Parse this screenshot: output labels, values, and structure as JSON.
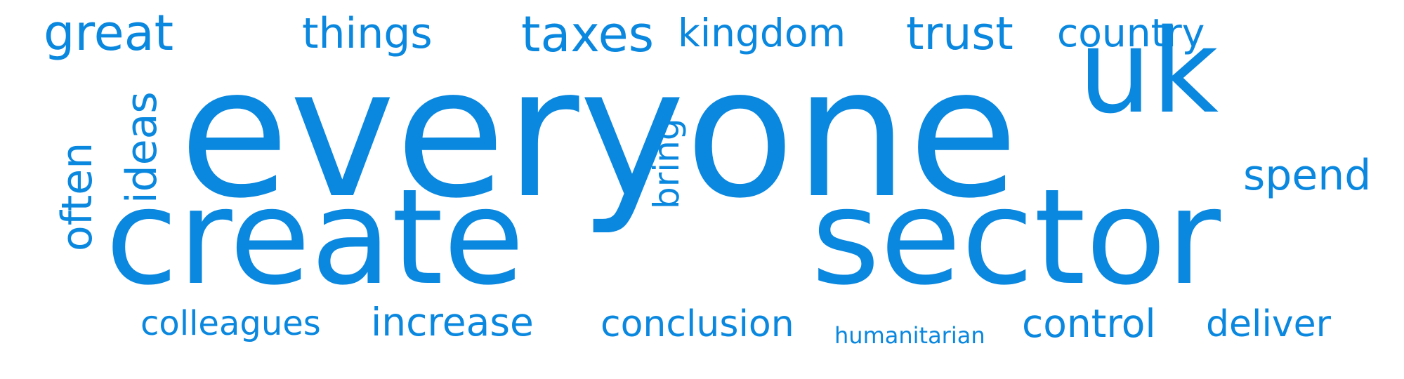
{
  "palette": {
    "word": "#0A87DE"
  },
  "words": [
    {
      "text": "everyone",
      "orientation": "horizontal"
    },
    {
      "text": "create",
      "orientation": "horizontal"
    },
    {
      "text": "sector",
      "orientation": "horizontal"
    },
    {
      "text": "uk",
      "orientation": "horizontal"
    },
    {
      "text": "great",
      "orientation": "horizontal"
    },
    {
      "text": "things",
      "orientation": "horizontal"
    },
    {
      "text": "taxes",
      "orientation": "horizontal"
    },
    {
      "text": "kingdom",
      "orientation": "horizontal"
    },
    {
      "text": "trust",
      "orientation": "horizontal"
    },
    {
      "text": "country",
      "orientation": "horizontal"
    },
    {
      "text": "spend",
      "orientation": "horizontal"
    },
    {
      "text": "often",
      "orientation": "vertical"
    },
    {
      "text": "ideas",
      "orientation": "vertical"
    },
    {
      "text": "bring",
      "orientation": "vertical"
    },
    {
      "text": "colleagues",
      "orientation": "horizontal"
    },
    {
      "text": "increase",
      "orientation": "horizontal"
    },
    {
      "text": "conclusion",
      "orientation": "horizontal"
    },
    {
      "text": "humanitarian",
      "orientation": "horizontal"
    },
    {
      "text": "control",
      "orientation": "horizontal"
    },
    {
      "text": "deliver",
      "orientation": "horizontal"
    }
  ]
}
